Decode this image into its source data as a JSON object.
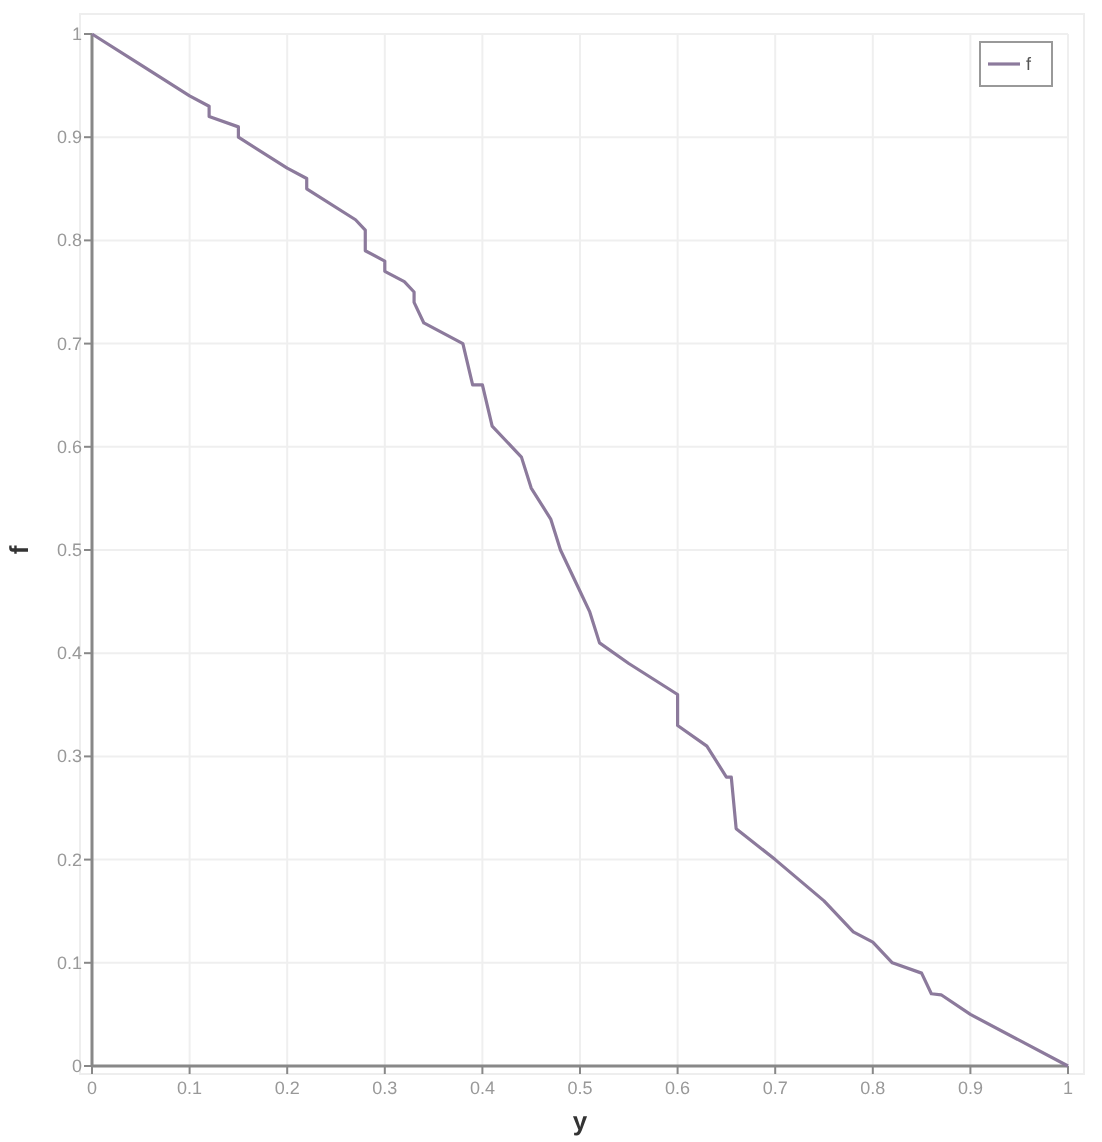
{
  "chart_data": {
    "type": "line",
    "xlabel": "y",
    "ylabel": "f",
    "x": [
      0,
      0.05,
      0.1,
      0.12,
      0.12,
      0.15,
      0.15,
      0.2,
      0.22,
      0.22,
      0.27,
      0.28,
      0.28,
      0.3,
      0.3,
      0.32,
      0.33,
      0.33,
      0.34,
      0.38,
      0.39,
      0.4,
      0.41,
      0.44,
      0.45,
      0.47,
      0.48,
      0.5,
      0.51,
      0.52,
      0.55,
      0.6,
      0.6,
      0.63,
      0.65,
      0.655,
      0.66,
      0.7,
      0.75,
      0.78,
      0.8,
      0.82,
      0.85,
      0.86,
      0.87,
      0.9,
      1
    ],
    "series": [
      {
        "name": "f",
        "color": "#8c7a9c",
        "values": [
          1,
          0.97,
          0.94,
          0.93,
          0.92,
          0.91,
          0.9,
          0.87,
          0.86,
          0.85,
          0.82,
          0.81,
          0.79,
          0.78,
          0.77,
          0.76,
          0.75,
          0.74,
          0.72,
          0.7,
          0.66,
          0.66,
          0.62,
          0.59,
          0.56,
          0.53,
          0.5,
          0.46,
          0.44,
          0.41,
          0.39,
          0.36,
          0.33,
          0.31,
          0.28,
          0.28,
          0.23,
          0.2,
          0.16,
          0.13,
          0.12,
          0.1,
          0.09,
          0.07,
          0.069,
          0.05,
          0
        ]
      }
    ],
    "xlim": [
      0,
      1
    ],
    "ylim": [
      0,
      1
    ],
    "xticks": [
      0,
      0.1,
      0.2,
      0.3,
      0.4,
      0.5,
      0.6,
      0.7,
      0.8,
      0.9,
      1
    ],
    "yticks": [
      0,
      0.1,
      0.2,
      0.3,
      0.4,
      0.5,
      0.6,
      0.7,
      0.8,
      0.9,
      1
    ],
    "grid": true,
    "legend": "top right"
  }
}
